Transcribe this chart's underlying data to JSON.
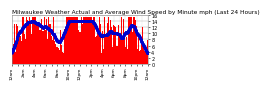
{
  "title": "Milwaukee Weather Actual and Average Wind Speed by Minute mph (Last 24 Hours)",
  "background_color": "#ffffff",
  "plot_bg_color": "#ffffff",
  "bar_color": "#ff0000",
  "line_color": "#0000cc",
  "num_points": 1440,
  "y_max": 16,
  "y_ticks": [
    0,
    2,
    4,
    6,
    8,
    10,
    12,
    14,
    16
  ],
  "grid_color": "#aaaaaa",
  "title_fontsize": 4.2,
  "tick_fontsize": 3.5,
  "x_tick_fontsize": 3.2
}
